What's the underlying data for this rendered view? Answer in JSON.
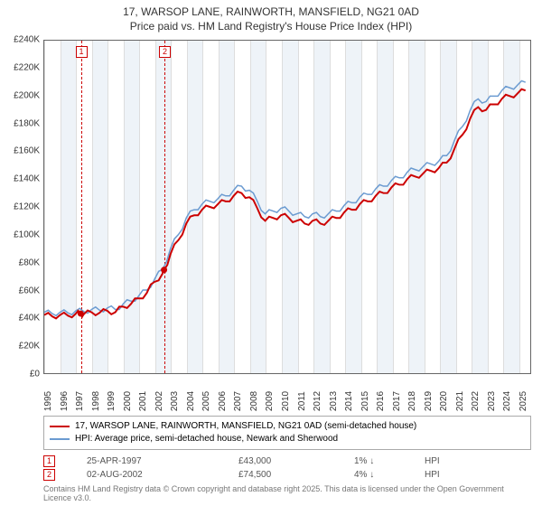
{
  "title_line1": "17, WARSOP LANE, RAINWORTH, MANSFIELD, NG21 0AD",
  "title_line2": "Price paid vs. HM Land Registry's House Price Index (HPI)",
  "chart": {
    "type": "line",
    "background_color": "#ffffff",
    "band_color": "#eef3f8",
    "grid_color": "#dddddd",
    "border_color": "#666666",
    "ylim": [
      0,
      240000
    ],
    "ytick_step": 20000,
    "ytick_labels": [
      "£0",
      "£20K",
      "£40K",
      "£60K",
      "£80K",
      "£100K",
      "£120K",
      "£140K",
      "£160K",
      "£180K",
      "£200K",
      "£220K",
      "£240K"
    ],
    "xlim": [
      1995,
      2025.8
    ],
    "xtick_step": 1,
    "xtick_labels": [
      "1995",
      "1996",
      "1997",
      "1998",
      "1999",
      "2000",
      "2001",
      "2002",
      "2003",
      "2004",
      "2005",
      "2006",
      "2007",
      "2008",
      "2009",
      "2010",
      "2011",
      "2012",
      "2013",
      "2014",
      "2015",
      "2016",
      "2017",
      "2018",
      "2019",
      "2020",
      "2021",
      "2022",
      "2023",
      "2024",
      "2025"
    ],
    "series": [
      {
        "name": "price_paid",
        "label": "17, WARSOP LANE, RAINWORTH, MANSFIELD, NG21 0AD (semi-detached house)",
        "color": "#cc0000",
        "line_width": 2,
        "x": [
          1995,
          1995.5,
          1996,
          1996.5,
          1997,
          1997.3,
          1997.5,
          1998,
          1998.5,
          1999,
          1999.5,
          2000,
          2000.5,
          2001,
          2001.5,
          2002,
          2002.5,
          2002.6,
          2003,
          2003.5,
          2004,
          2004.5,
          2005,
          2005.5,
          2006,
          2006.5,
          2007,
          2007.5,
          2008,
          2008.5,
          2009,
          2009.5,
          2010,
          2010.5,
          2011,
          2011.5,
          2012,
          2012.5,
          2013,
          2013.5,
          2014,
          2014.5,
          2015,
          2015.5,
          2016,
          2016.5,
          2017,
          2017.5,
          2018,
          2018.5,
          2019,
          2019.5,
          2020,
          2020.5,
          2021,
          2021.5,
          2022,
          2022.5,
          2023,
          2023.5,
          2024,
          2024.5,
          2025,
          2025.5
        ],
        "y": [
          42000,
          41000,
          42000,
          41500,
          43000,
          43000,
          42500,
          44000,
          43500,
          45000,
          44000,
          48000,
          50000,
          54000,
          58000,
          66000,
          72000,
          74500,
          86000,
          96000,
          108000,
          114000,
          118000,
          120000,
          122000,
          124000,
          128000,
          130000,
          127000,
          119000,
          110000,
          112000,
          114000,
          112000,
          110000,
          108000,
          110000,
          108000,
          110000,
          112000,
          116000,
          118000,
          122000,
          124000,
          128000,
          130000,
          134000,
          136000,
          140000,
          142000,
          144000,
          146000,
          148000,
          152000,
          162000,
          172000,
          184000,
          192000,
          190000,
          194000,
          198000,
          200000,
          202000,
          204000
        ]
      },
      {
        "name": "hpi",
        "label": "HPI: Average price, semi-detached house, Newark and Sherwood",
        "color": "#6b9bd1",
        "line_width": 1.5,
        "x": [
          1995,
          1995.5,
          1996,
          1996.5,
          1997,
          1997.5,
          1998,
          1998.5,
          1999,
          1999.5,
          2000,
          2000.5,
          2001,
          2001.5,
          2002,
          2002.5,
          2003,
          2003.5,
          2004,
          2004.5,
          2005,
          2005.5,
          2006,
          2006.5,
          2007,
          2007.5,
          2008,
          2008.5,
          2009,
          2009.5,
          2010,
          2010.5,
          2011,
          2011.5,
          2012,
          2012.5,
          2013,
          2013.5,
          2014,
          2014.5,
          2015,
          2015.5,
          2016,
          2016.5,
          2017,
          2017.5,
          2018,
          2018.5,
          2019,
          2019.5,
          2020,
          2020.5,
          2021,
          2021.5,
          2022,
          2022.5,
          2023,
          2023.5,
          2024,
          2024.5,
          2025,
          2025.5
        ],
        "y": [
          44000,
          43000,
          44000,
          43500,
          45000,
          44500,
          46000,
          45500,
          47000,
          46000,
          50000,
          52000,
          56000,
          60000,
          68000,
          75000,
          90000,
          100000,
          112000,
          118000,
          122000,
          124000,
          126000,
          128000,
          132000,
          135000,
          132000,
          124000,
          115000,
          117000,
          119000,
          117000,
          115000,
          113000,
          115000,
          113000,
          115000,
          117000,
          121000,
          123000,
          127000,
          129000,
          133000,
          135000,
          139000,
          141000,
          145000,
          147000,
          149000,
          151000,
          153000,
          157000,
          168000,
          178000,
          190000,
          198000,
          196000,
          200000,
          204000,
          206000,
          208000,
          210000
        ]
      }
    ],
    "markers": [
      {
        "id": "1",
        "x": 1997.31,
        "y": 43000,
        "date": "25-APR-1997",
        "price": "£43,000",
        "pct": "1%",
        "dir": "↓",
        "vs": "HPI"
      },
      {
        "id": "2",
        "x": 2002.59,
        "y": 74500,
        "date": "02-AUG-2002",
        "price": "£74,500",
        "pct": "4%",
        "dir": "↓",
        "vs": "HPI"
      }
    ]
  },
  "attribution": "Contains HM Land Registry data © Crown copyright and database right 2025. This data is licensed under the Open Government Licence v3.0.",
  "label_fontsize": 10,
  "title_fontsize": 12
}
